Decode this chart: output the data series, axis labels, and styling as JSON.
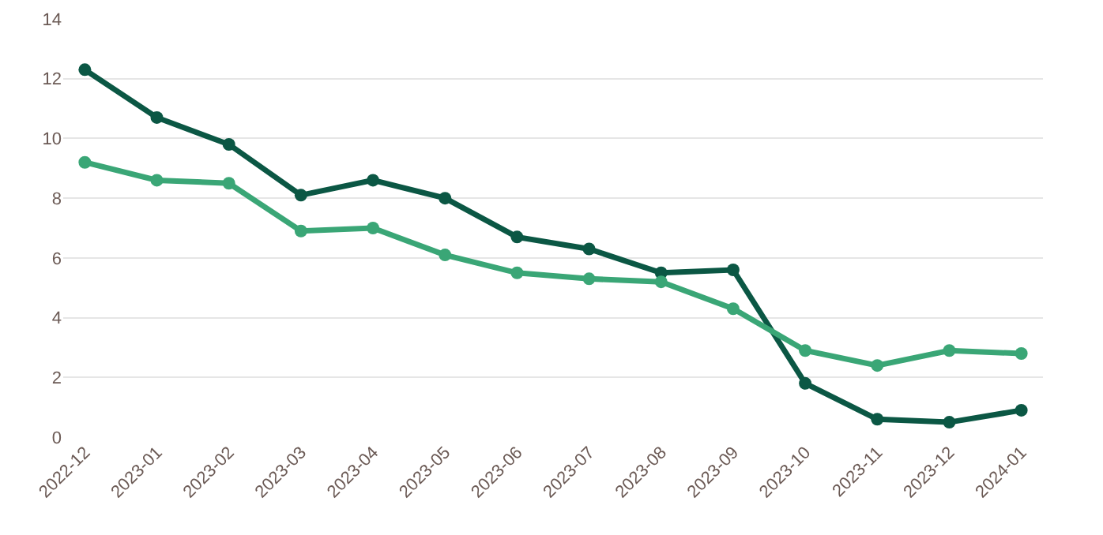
{
  "chart_data": {
    "type": "line",
    "categories": [
      "2022-12",
      "2023-01",
      "2023-02",
      "2023-03",
      "2023-04",
      "2023-05",
      "2023-06",
      "2023-07",
      "2023-08",
      "2023-09",
      "2023-10",
      "2023-11",
      "2023-12",
      "2024-01"
    ],
    "series": [
      {
        "color": "#0b5744",
        "values": [
          12.3,
          10.7,
          9.8,
          8.1,
          8.6,
          8.0,
          6.7,
          6.3,
          5.5,
          5.6,
          1.8,
          0.6,
          0.5,
          0.9
        ]
      },
      {
        "color": "#3aa676",
        "values": [
          9.2,
          8.6,
          8.5,
          6.9,
          7.0,
          6.1,
          5.5,
          5.3,
          5.2,
          4.3,
          2.9,
          2.4,
          2.9,
          2.8
        ]
      }
    ],
    "ylim": [
      0,
      14
    ],
    "yticks": [
      0,
      2,
      4,
      6,
      8,
      10,
      12,
      14
    ],
    "grid": "y",
    "marker": "circle",
    "line_style": "solid"
  }
}
